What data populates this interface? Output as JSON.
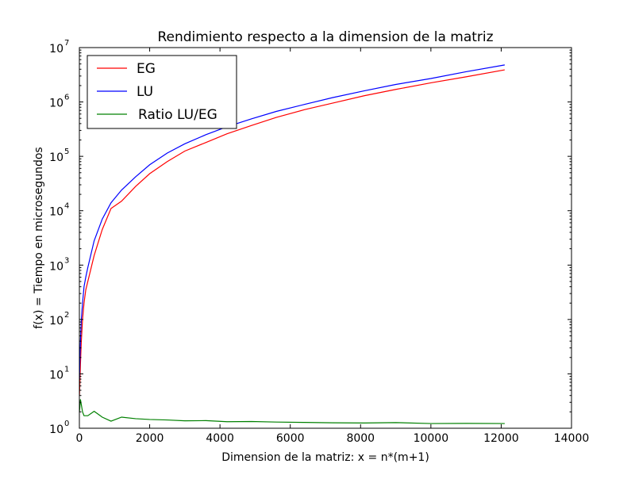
{
  "chart_data": {
    "type": "line",
    "title": "Rendimiento respecto a la dimension de la matriz",
    "xlabel": "Dimension de la matriz: x = n*(m+1)",
    "ylabel": "f(x) = Tiempo en microsegundos",
    "xlim": [
      0,
      14000
    ],
    "ylim": [
      1,
      10000000
    ],
    "yscale": "log",
    "grid": false,
    "legend_position": "upper-left",
    "x_ticks": [
      {
        "value": 0,
        "label": "0"
      },
      {
        "value": 2000,
        "label": "2000"
      },
      {
        "value": 4000,
        "label": "4000"
      },
      {
        "value": 6000,
        "label": "6000"
      },
      {
        "value": 8000,
        "label": "8000"
      },
      {
        "value": 10000,
        "label": "10000"
      },
      {
        "value": 12000,
        "label": "12000"
      },
      {
        "value": 14000,
        "label": "14000"
      }
    ],
    "y_ticks": [
      {
        "value": 1,
        "base": "10",
        "exp": "0"
      },
      {
        "value": 10,
        "base": "10",
        "exp": "1"
      },
      {
        "value": 100,
        "base": "10",
        "exp": "2"
      },
      {
        "value": 1000,
        "base": "10",
        "exp": "3"
      },
      {
        "value": 10000,
        "base": "10",
        "exp": "4"
      },
      {
        "value": 100000,
        "base": "10",
        "exp": "5"
      },
      {
        "value": 1000000,
        "base": "10",
        "exp": "6"
      },
      {
        "value": 10000000,
        "base": "10",
        "exp": "7"
      }
    ],
    "series": [
      {
        "name": "EG",
        "color": "#ff0000",
        "x": [
          2,
          12,
          30,
          56,
          90,
          132,
          182,
          240,
          420,
          650,
          900,
          1200,
          1600,
          2000,
          2500,
          3000,
          3600,
          4200,
          4900,
          5600,
          6400,
          7200,
          8100,
          9000,
          10000,
          11000,
          12100
        ],
        "y": [
          4,
          6,
          15,
          40,
          100,
          200,
          350,
          500,
          1500,
          4500,
          11000,
          15000,
          28000,
          48000,
          80000,
          125000,
          180000,
          260000,
          370000,
          520000,
          720000,
          950000,
          1300000,
          1700000,
          2250000,
          2900000,
          3900000
        ]
      },
      {
        "name": "LU",
        "color": "#0000ff",
        "x": [
          2,
          12,
          30,
          56,
          90,
          132,
          182,
          240,
          420,
          650,
          900,
          1200,
          1600,
          2000,
          2500,
          3000,
          3600,
          4200,
          4900,
          5600,
          6400,
          7200,
          8100,
          9000,
          10000,
          11000,
          12100
        ],
        "y": [
          8,
          15,
          40,
          100,
          200,
          400,
          600,
          900,
          2800,
          7000,
          14000,
          24000,
          42000,
          70000,
          115000,
          170000,
          250000,
          350000,
          490000,
          670000,
          900000,
          1200000,
          1600000,
          2100000,
          2700000,
          3600000,
          4800000
        ]
      },
      {
        "name": "Ratio LU/EG",
        "color": "#008000",
        "x": [
          2,
          30,
          90,
          132,
          240,
          420,
          650,
          900,
          1200,
          1600,
          2000,
          2500,
          3000,
          3600,
          4200,
          4900,
          5600,
          6400,
          7200,
          8100,
          9000,
          10000,
          11000,
          12100
        ],
        "y": [
          2.0,
          3.4,
          2.0,
          1.7,
          1.7,
          2.05,
          1.6,
          1.35,
          1.6,
          1.5,
          1.45,
          1.42,
          1.37,
          1.38,
          1.32,
          1.33,
          1.3,
          1.28,
          1.26,
          1.25,
          1.27,
          1.22,
          1.23,
          1.22
        ]
      }
    ]
  }
}
